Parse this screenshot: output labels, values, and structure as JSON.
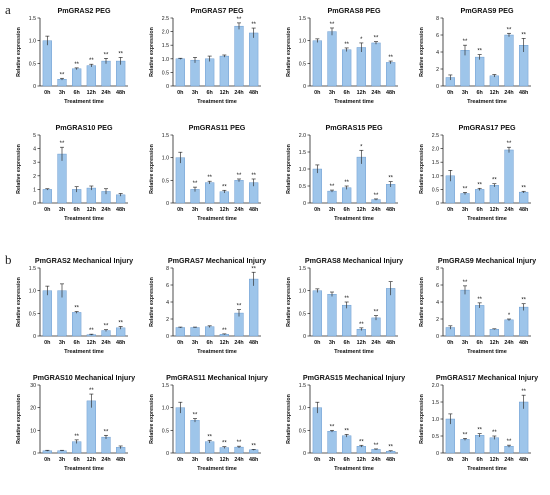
{
  "panel_labels": [
    "a",
    "b"
  ],
  "colors": {
    "bar": "#9ec5ea",
    "bar_stroke": "#5b8fc9",
    "axis": "#222222",
    "error": "#333333"
  },
  "chart_data": [
    {
      "type": "bar",
      "title": "PmGRAS2 PEG",
      "xlabel": "Treatment time",
      "ylabel": "Relative expression",
      "categories": [
        "0h",
        "3h",
        "6h",
        "12h",
        "24h",
        "48h"
      ],
      "values": [
        1.0,
        0.15,
        0.38,
        0.45,
        0.55,
        0.55
      ],
      "errors": [
        0.1,
        0.02,
        0.02,
        0.03,
        0.06,
        0.08
      ],
      "significance": [
        "",
        "**",
        "**",
        "**",
        "**",
        "**"
      ],
      "ylim": [
        0,
        1.5
      ],
      "yticks": [
        0,
        0.5,
        1.0,
        1.5
      ],
      "ytick_labels": [
        "0",
        "0.5",
        "1.0",
        "1.5"
      ]
    },
    {
      "type": "bar",
      "title": "PmGRAS7 PEG",
      "xlabel": "Treatment time",
      "ylabel": "Relative expression",
      "categories": [
        "0h",
        "3h",
        "6h",
        "12h",
        "24h",
        "48h"
      ],
      "values": [
        1.0,
        0.95,
        1.0,
        1.1,
        2.2,
        1.95
      ],
      "errors": [
        0.02,
        0.1,
        0.1,
        0.04,
        0.12,
        0.18
      ],
      "significance": [
        "",
        "",
        "",
        "",
        "**",
        "**"
      ],
      "ylim": [
        0,
        2.5
      ],
      "yticks": [
        0,
        0.5,
        1.0,
        1.5,
        2.0,
        2.5
      ],
      "ytick_labels": [
        "0",
        "0.5",
        "1.0",
        "1.5",
        "2.0",
        "2.5"
      ]
    },
    {
      "type": "bar",
      "title": "PmGRAS8 PEG",
      "xlabel": "Treatment time",
      "ylabel": "Relative expression",
      "categories": [
        "0h",
        "3h",
        "6h",
        "12h",
        "24h",
        "48h"
      ],
      "values": [
        1.0,
        1.2,
        0.8,
        0.85,
        0.95,
        0.52
      ],
      "errors": [
        0.04,
        0.08,
        0.04,
        0.1,
        0.03,
        0.03
      ],
      "significance": [
        "",
        "**",
        "**",
        "*",
        "**",
        "**"
      ],
      "ylim": [
        0,
        1.5
      ],
      "yticks": [
        0,
        0.5,
        1.0,
        1.5
      ],
      "ytick_labels": [
        "0",
        "0.5",
        "1.0",
        "1.5"
      ]
    },
    {
      "type": "bar",
      "title": "PmGRAS9 PEG",
      "xlabel": "Treatment time",
      "ylabel": "Relative expression",
      "categories": [
        "0h",
        "3h",
        "6h",
        "12h",
        "24h",
        "48h"
      ],
      "values": [
        1.0,
        4.2,
        3.4,
        1.2,
        6.0,
        4.8
      ],
      "errors": [
        0.3,
        0.6,
        0.3,
        0.15,
        0.2,
        0.8
      ],
      "significance": [
        "",
        "**",
        "**",
        "",
        "**",
        "**"
      ],
      "ylim": [
        0,
        8
      ],
      "yticks": [
        0,
        2,
        4,
        6,
        8
      ],
      "ytick_labels": [
        "0",
        "2",
        "4",
        "6",
        "8"
      ]
    },
    {
      "type": "bar",
      "title": "PmGRAS10 PEG",
      "xlabel": "Treatment time",
      "ylabel": "Relative expression",
      "categories": [
        "0h",
        "3h",
        "6h",
        "12h",
        "24h",
        "48h"
      ],
      "values": [
        1.0,
        3.6,
        1.0,
        1.1,
        0.85,
        0.6
      ],
      "errors": [
        0.05,
        0.5,
        0.2,
        0.15,
        0.2,
        0.1
      ],
      "significance": [
        "",
        "**",
        "",
        "",
        "",
        ""
      ],
      "ylim": [
        0,
        5
      ],
      "yticks": [
        0,
        1,
        2,
        3,
        4,
        5
      ],
      "ytick_labels": [
        "0",
        "1",
        "2",
        "3",
        "4",
        "5"
      ]
    },
    {
      "type": "bar",
      "title": "PmGRAS11 PEG",
      "xlabel": "Treatment time",
      "ylabel": "Relative expression",
      "categories": [
        "0h",
        "3h",
        "6h",
        "12h",
        "24h",
        "48h"
      ],
      "values": [
        1.0,
        0.3,
        0.45,
        0.25,
        0.5,
        0.45
      ],
      "errors": [
        0.12,
        0.05,
        0.03,
        0.03,
        0.03,
        0.08
      ],
      "significance": [
        "",
        "**",
        "**",
        "**",
        "**",
        "**"
      ],
      "ylim": [
        0,
        1.5
      ],
      "yticks": [
        0,
        0.5,
        1.0,
        1.5
      ],
      "ytick_labels": [
        "0",
        "0.5",
        "1.0",
        "1.5"
      ]
    },
    {
      "type": "bar",
      "title": "PmGRAS15 PEG",
      "xlabel": "Treatment time",
      "ylabel": "Relative expression",
      "categories": [
        "0h",
        "3h",
        "6h",
        "12h",
        "24h",
        "48h"
      ],
      "values": [
        1.0,
        0.35,
        0.45,
        1.35,
        0.1,
        0.55
      ],
      "errors": [
        0.12,
        0.03,
        0.05,
        0.2,
        0.02,
        0.08
      ],
      "significance": [
        "",
        "**",
        "**",
        "*",
        "**",
        "**"
      ],
      "ylim": [
        0,
        2.0
      ],
      "yticks": [
        0,
        0.5,
        1.0,
        1.5,
        2.0
      ],
      "ytick_labels": [
        "0",
        "0.5",
        "1.0",
        "1.5",
        "2.0"
      ]
    },
    {
      "type": "bar",
      "title": "PmGRAS17 PEG",
      "xlabel": "Treatment time",
      "ylabel": "Relative expression",
      "categories": [
        "0h",
        "3h",
        "6h",
        "12h",
        "24h",
        "48h"
      ],
      "values": [
        1.0,
        0.35,
        0.5,
        0.65,
        1.95,
        0.4
      ],
      "errors": [
        0.2,
        0.04,
        0.04,
        0.06,
        0.1,
        0.03
      ],
      "significance": [
        "",
        "**",
        "**",
        "**",
        "**",
        "**"
      ],
      "ylim": [
        0,
        2.5
      ],
      "yticks": [
        0,
        0.5,
        1.0,
        1.5,
        2.0,
        2.5
      ],
      "ytick_labels": [
        "0",
        "0.5",
        "1.0",
        "1.5",
        "2.0",
        "2.5"
      ]
    },
    {
      "type": "bar",
      "title": "PmGRAS2 Mechanical Injury",
      "xlabel": "Treatment time",
      "ylabel": "Relative expression",
      "categories": [
        "0h",
        "3h",
        "6h",
        "12h",
        "24h",
        "48h"
      ],
      "values": [
        1.0,
        1.0,
        0.52,
        0.03,
        0.12,
        0.18
      ],
      "errors": [
        0.1,
        0.15,
        0.02,
        0.01,
        0.02,
        0.03
      ],
      "significance": [
        "",
        "",
        "**",
        "**",
        "**",
        "**"
      ],
      "ylim": [
        0,
        1.5
      ],
      "yticks": [
        0,
        0.5,
        1.0,
        1.5
      ],
      "ytick_labels": [
        "0",
        "0.5",
        "1.0",
        "1.5"
      ]
    },
    {
      "type": "bar",
      "title": "PmGRAS7 Mechanical Injury",
      "xlabel": "Treatment time",
      "ylabel": "Relative expression",
      "categories": [
        "0h",
        "3h",
        "6h",
        "12h",
        "24h",
        "48h"
      ],
      "values": [
        1.0,
        1.0,
        1.1,
        0.2,
        2.7,
        6.7
      ],
      "errors": [
        0.05,
        0.05,
        0.1,
        0.05,
        0.4,
        0.8
      ],
      "significance": [
        "",
        "",
        "",
        "**",
        "**",
        "**"
      ],
      "ylim": [
        0,
        8
      ],
      "yticks": [
        0,
        2,
        4,
        6,
        8
      ],
      "ytick_labels": [
        "0",
        "2",
        "4",
        "6",
        "8"
      ]
    },
    {
      "type": "bar",
      "title": "PmGRAS8 Mechanical Injury",
      "xlabel": "Treatment time",
      "ylabel": "Relative expression",
      "categories": [
        "0h",
        "3h",
        "6h",
        "12h",
        "24h",
        "48h"
      ],
      "values": [
        1.0,
        0.92,
        0.68,
        0.15,
        0.4,
        1.05
      ],
      "errors": [
        0.04,
        0.05,
        0.07,
        0.03,
        0.05,
        0.15
      ],
      "significance": [
        "",
        "",
        "**",
        "**",
        "**",
        ""
      ],
      "ylim": [
        0,
        1.5
      ],
      "yticks": [
        0,
        0.5,
        1.0,
        1.5
      ],
      "ytick_labels": [
        "0",
        "0.5",
        "1.0",
        "1.5"
      ]
    },
    {
      "type": "bar",
      "title": "PmGRAS9 Mechanical Injury",
      "xlabel": "Treatment time",
      "ylabel": "Relative expression",
      "categories": [
        "0h",
        "3h",
        "6h",
        "12h",
        "24h",
        "48h"
      ],
      "values": [
        1.0,
        5.4,
        3.6,
        0.8,
        1.9,
        3.4
      ],
      "errors": [
        0.2,
        0.5,
        0.3,
        0.05,
        0.1,
        0.4
      ],
      "significance": [
        "",
        "**",
        "**",
        "",
        "*",
        "**"
      ],
      "ylim": [
        0,
        8
      ],
      "yticks": [
        0,
        2,
        4,
        6,
        8
      ],
      "ytick_labels": [
        "0",
        "2",
        "4",
        "6",
        "8"
      ]
    },
    {
      "type": "bar",
      "title": "PmGRAS10 Mechanical Injury",
      "xlabel": "Treatment time",
      "ylabel": "Relative expression",
      "categories": [
        "0h",
        "3h",
        "6h",
        "12h",
        "24h",
        "48h"
      ],
      "values": [
        1.0,
        1.0,
        5.0,
        23.0,
        7.0,
        2.5
      ],
      "errors": [
        0.2,
        0.2,
        0.8,
        3.0,
        0.8,
        0.6
      ],
      "significance": [
        "",
        "",
        "**",
        "**",
        "**",
        ""
      ],
      "ylim": [
        0,
        30
      ],
      "yticks": [
        0,
        10,
        20,
        30
      ],
      "ytick_labels": [
        "0",
        "10",
        "20",
        "30"
      ]
    },
    {
      "type": "bar",
      "title": "PmGRAS11 Mechanical Injury",
      "xlabel": "Treatment time",
      "ylabel": "Relative expression",
      "categories": [
        "0h",
        "3h",
        "6h",
        "12h",
        "24h",
        "48h"
      ],
      "values": [
        1.0,
        0.72,
        0.25,
        0.12,
        0.13,
        0.07
      ],
      "errors": [
        0.12,
        0.04,
        0.03,
        0.02,
        0.02,
        0.01
      ],
      "significance": [
        "",
        "**",
        "**",
        "**",
        "**",
        "**"
      ],
      "ylim": [
        0,
        1.5
      ],
      "yticks": [
        0,
        0.5,
        1.0,
        1.5
      ],
      "ytick_labels": [
        "0",
        "0.5",
        "1.0",
        "1.5"
      ]
    },
    {
      "type": "bar",
      "title": "PmGRAS15 Mechanical Injury",
      "xlabel": "Treatment time",
      "ylabel": "Relative expression",
      "categories": [
        "0h",
        "3h",
        "6h",
        "12h",
        "24h",
        "48h"
      ],
      "values": [
        1.0,
        0.48,
        0.38,
        0.15,
        0.08,
        0.04
      ],
      "errors": [
        0.12,
        0.02,
        0.03,
        0.02,
        0.01,
        0.01
      ],
      "significance": [
        "",
        "**",
        "**",
        "**",
        "**",
        "**"
      ],
      "ylim": [
        0,
        1.5
      ],
      "yticks": [
        0,
        0.5,
        1.0,
        1.5
      ],
      "ytick_labels": [
        "0",
        "0.5",
        "1.0",
        "1.5"
      ]
    },
    {
      "type": "bar",
      "title": "PmGRAS17 Mechanical Injury",
      "xlabel": "Treatment time",
      "ylabel": "Relative expression",
      "categories": [
        "0h",
        "3h",
        "6h",
        "12h",
        "24h",
        "48h"
      ],
      "values": [
        1.0,
        0.4,
        0.52,
        0.45,
        0.2,
        1.5
      ],
      "errors": [
        0.15,
        0.03,
        0.05,
        0.05,
        0.03,
        0.2
      ],
      "significance": [
        "",
        "**",
        "**",
        "**",
        "**",
        "**"
      ],
      "ylim": [
        0,
        2.0
      ],
      "yticks": [
        0,
        0.5,
        1.0,
        1.5,
        2.0
      ],
      "ytick_labels": [
        "0",
        "0.5",
        "1.0",
        "1.5",
        "2.0"
      ]
    }
  ]
}
